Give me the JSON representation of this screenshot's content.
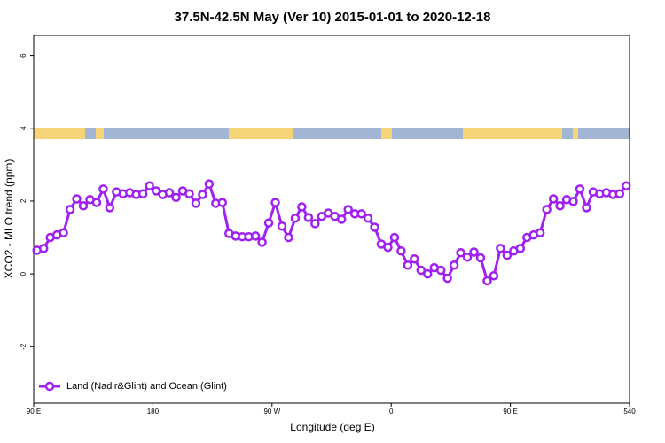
{
  "chart_data": {
    "type": "line",
    "title": "37.5N-42.5N May (Ver 10)   2015-01-01 to 2020-12-18",
    "xlabel": "Longitude (deg E)",
    "ylabel": "XCO2 - MLO trend (ppm)",
    "x": [
      92.5,
      97.5,
      102.5,
      107.5,
      112.5,
      117.5,
      122.5,
      127.5,
      132.5,
      137.5,
      142.5,
      147.5,
      152.5,
      157.5,
      162.5,
      167.5,
      172.5,
      177.5,
      182.5,
      187.5,
      192.5,
      197.5,
      202.5,
      207.5,
      212.5,
      217.5,
      222.5,
      227.5,
      232.5,
      237.5,
      242.5,
      247.5,
      252.5,
      257.5,
      262.5,
      267.5,
      272.5,
      277.5,
      282.5,
      287.5,
      292.5,
      297.5,
      302.5,
      307.5,
      312.5,
      317.5,
      322.5,
      327.5,
      332.5,
      337.5,
      342.5,
      347.5,
      352.5,
      357.5,
      362.5,
      367.5,
      372.5,
      377.5,
      382.5,
      387.5,
      392.5,
      397.5,
      402.5,
      407.5,
      412.5,
      417.5,
      422.5,
      427.5,
      432.5,
      437.5,
      442.5,
      447.5,
      452.5,
      457.5,
      462.5,
      467.5,
      472.5,
      477.5,
      482.5,
      487.5,
      492.5,
      497.5,
      502.5,
      507.5,
      512.5,
      517.5,
      522.5,
      527.5,
      532.5,
      537.5
    ],
    "series": [
      {
        "name": "Land (Nadir&Glint) and Ocean (Glint)",
        "color": "#a020f0",
        "values": [
          0.65,
          0.7,
          1.0,
          1.07,
          1.13,
          1.77,
          2.06,
          1.87,
          2.04,
          1.96,
          2.33,
          1.82,
          2.25,
          2.2,
          2.23,
          2.18,
          2.2,
          2.42,
          2.28,
          2.18,
          2.23,
          2.1,
          2.28,
          2.2,
          1.94,
          2.18,
          2.47,
          1.94,
          1.96,
          1.11,
          1.04,
          1.02,
          1.02,
          1.04,
          0.87,
          1.4,
          1.96,
          1.31,
          1.0,
          1.53,
          1.84,
          1.55,
          1.38,
          1.58,
          1.67,
          1.58,
          1.5,
          1.77,
          1.65,
          1.65,
          1.53,
          1.28,
          0.82,
          0.73,
          1.0,
          0.63,
          0.24,
          0.41,
          0.1,
          0.0,
          0.17,
          0.1,
          -0.12,
          0.24,
          0.58,
          0.46,
          0.6,
          0.44,
          -0.19,
          -0.05,
          0.7,
          0.51,
          0.63,
          0.7,
          1.0,
          1.07,
          1.13,
          1.77,
          2.06,
          1.87,
          2.04,
          1.99,
          2.33,
          1.82,
          2.25,
          2.2,
          2.23,
          2.18,
          2.2,
          2.42
        ]
      }
    ],
    "xlim": [
      90,
      540
    ],
    "xticks": [
      {
        "value": 90,
        "label": "90 E"
      },
      180,
      {
        "value": 270,
        "label": "90 W"
      },
      {
        "value": 360,
        "label": "0"
      },
      {
        "value": 450,
        "label": "90 E"
      },
      540
    ],
    "ylim": [
      -3.55,
      6.55
    ],
    "yticks": [
      -2,
      0,
      2,
      4,
      6
    ],
    "legend": "bottomleft",
    "grid": false
  }
}
